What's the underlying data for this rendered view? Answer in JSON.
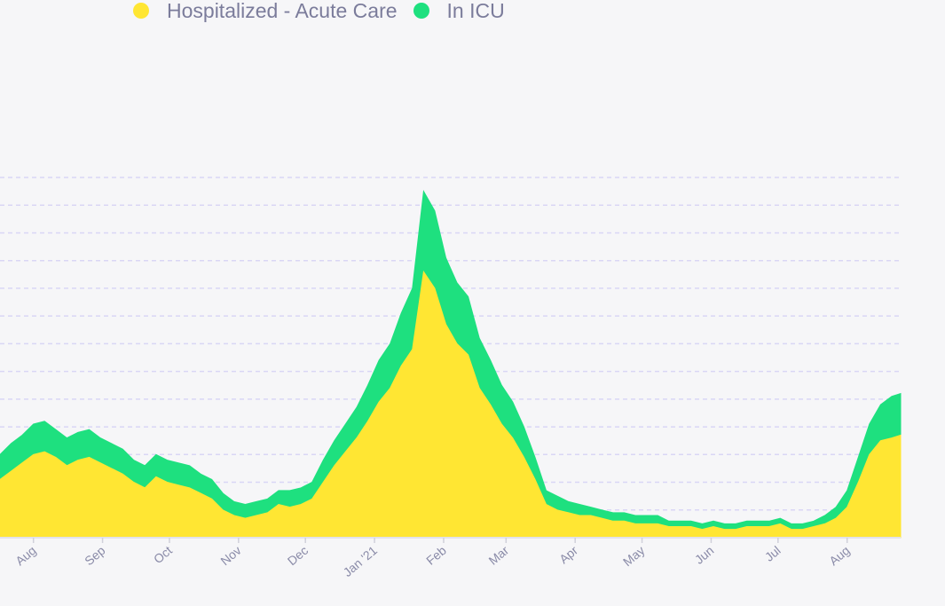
{
  "chart_data": {
    "type": "area",
    "stacked": true,
    "grid": true,
    "legend_position": "top-left",
    "x_range": [
      "2020-07-17",
      "2021-08-25"
    ],
    "ylim": [
      0,
      13
    ],
    "x_ticks": [
      {
        "date": "2020-08-01",
        "label": "Aug"
      },
      {
        "date": "2020-09-01",
        "label": "Sep"
      },
      {
        "date": "2020-10-01",
        "label": "Oct"
      },
      {
        "date": "2020-11-01",
        "label": "Nov"
      },
      {
        "date": "2020-12-01",
        "label": "Dec"
      },
      {
        "date": "2021-01-01",
        "label": "Jan '21"
      },
      {
        "date": "2021-02-01",
        "label": "Feb"
      },
      {
        "date": "2021-03-01",
        "label": "Mar"
      },
      {
        "date": "2021-04-01",
        "label": "Apr"
      },
      {
        "date": "2021-05-01",
        "label": "May"
      },
      {
        "date": "2021-06-01",
        "label": "Jun"
      },
      {
        "date": "2021-07-01",
        "label": "Jul"
      },
      {
        "date": "2021-08-01",
        "label": "Aug"
      }
    ],
    "x": [
      "2020-07-17",
      "2020-07-22",
      "2020-07-27",
      "2020-08-01",
      "2020-08-06",
      "2020-08-11",
      "2020-08-16",
      "2020-08-21",
      "2020-08-26",
      "2020-08-31",
      "2020-09-05",
      "2020-09-10",
      "2020-09-15",
      "2020-09-20",
      "2020-09-25",
      "2020-09-30",
      "2020-10-05",
      "2020-10-10",
      "2020-10-15",
      "2020-10-20",
      "2020-10-25",
      "2020-10-30",
      "2020-11-04",
      "2020-11-09",
      "2020-11-14",
      "2020-11-19",
      "2020-11-24",
      "2020-11-29",
      "2020-12-04",
      "2020-12-09",
      "2020-12-14",
      "2020-12-19",
      "2020-12-24",
      "2020-12-29",
      "2021-01-03",
      "2021-01-08",
      "2021-01-13",
      "2021-01-18",
      "2021-01-23",
      "2021-01-28",
      "2021-02-02",
      "2021-02-07",
      "2021-02-12",
      "2021-02-17",
      "2021-02-22",
      "2021-02-27",
      "2021-03-04",
      "2021-03-09",
      "2021-03-14",
      "2021-03-19",
      "2021-03-24",
      "2021-03-29",
      "2021-04-03",
      "2021-04-08",
      "2021-04-13",
      "2021-04-18",
      "2021-04-23",
      "2021-04-28",
      "2021-05-03",
      "2021-05-08",
      "2021-05-13",
      "2021-05-18",
      "2021-05-23",
      "2021-05-28",
      "2021-06-02",
      "2021-06-07",
      "2021-06-12",
      "2021-06-17",
      "2021-06-22",
      "2021-06-27",
      "2021-07-02",
      "2021-07-07",
      "2021-07-12",
      "2021-07-17",
      "2021-07-22",
      "2021-07-27",
      "2021-08-01",
      "2021-08-06",
      "2021-08-11",
      "2021-08-16",
      "2021-08-21",
      "2021-08-25"
    ],
    "series": [
      {
        "name": "Hospitalized - Acute Care",
        "color": "#ffe633",
        "values": [
          2.1,
          2.4,
          2.7,
          3.0,
          3.1,
          2.9,
          2.6,
          2.8,
          2.9,
          2.7,
          2.5,
          2.3,
          2.0,
          1.8,
          2.2,
          2.0,
          1.9,
          1.8,
          1.6,
          1.4,
          1.0,
          0.8,
          0.7,
          0.8,
          0.9,
          1.2,
          1.1,
          1.2,
          1.4,
          2.0,
          2.6,
          3.1,
          3.6,
          4.2,
          4.9,
          5.4,
          6.2,
          6.8,
          9.6,
          9.0,
          7.7,
          7.0,
          6.6,
          5.4,
          4.8,
          4.1,
          3.6,
          2.9,
          2.1,
          1.2,
          1.0,
          0.9,
          0.8,
          0.8,
          0.7,
          0.6,
          0.6,
          0.5,
          0.5,
          0.5,
          0.4,
          0.4,
          0.4,
          0.3,
          0.4,
          0.3,
          0.3,
          0.4,
          0.4,
          0.4,
          0.5,
          0.3,
          0.3,
          0.4,
          0.5,
          0.7,
          1.1,
          2.0,
          3.0,
          3.5,
          3.6,
          3.7
        ]
      },
      {
        "name": "In ICU",
        "color": "#1ee07f",
        "values": [
          0.9,
          1.0,
          1.0,
          1.1,
          1.1,
          1.0,
          1.0,
          1.0,
          1.0,
          0.9,
          0.9,
          0.9,
          0.8,
          0.8,
          0.8,
          0.8,
          0.8,
          0.8,
          0.7,
          0.7,
          0.6,
          0.5,
          0.5,
          0.5,
          0.5,
          0.5,
          0.6,
          0.6,
          0.6,
          0.8,
          0.9,
          1.0,
          1.1,
          1.3,
          1.5,
          1.6,
          1.9,
          2.2,
          2.9,
          2.8,
          2.4,
          2.2,
          2.1,
          1.8,
          1.6,
          1.4,
          1.3,
          1.1,
          0.8,
          0.5,
          0.5,
          0.4,
          0.4,
          0.3,
          0.3,
          0.3,
          0.3,
          0.3,
          0.3,
          0.3,
          0.2,
          0.2,
          0.2,
          0.2,
          0.2,
          0.2,
          0.2,
          0.2,
          0.2,
          0.2,
          0.2,
          0.2,
          0.2,
          0.2,
          0.3,
          0.4,
          0.6,
          0.9,
          1.1,
          1.3,
          1.5,
          1.5
        ]
      }
    ]
  }
}
